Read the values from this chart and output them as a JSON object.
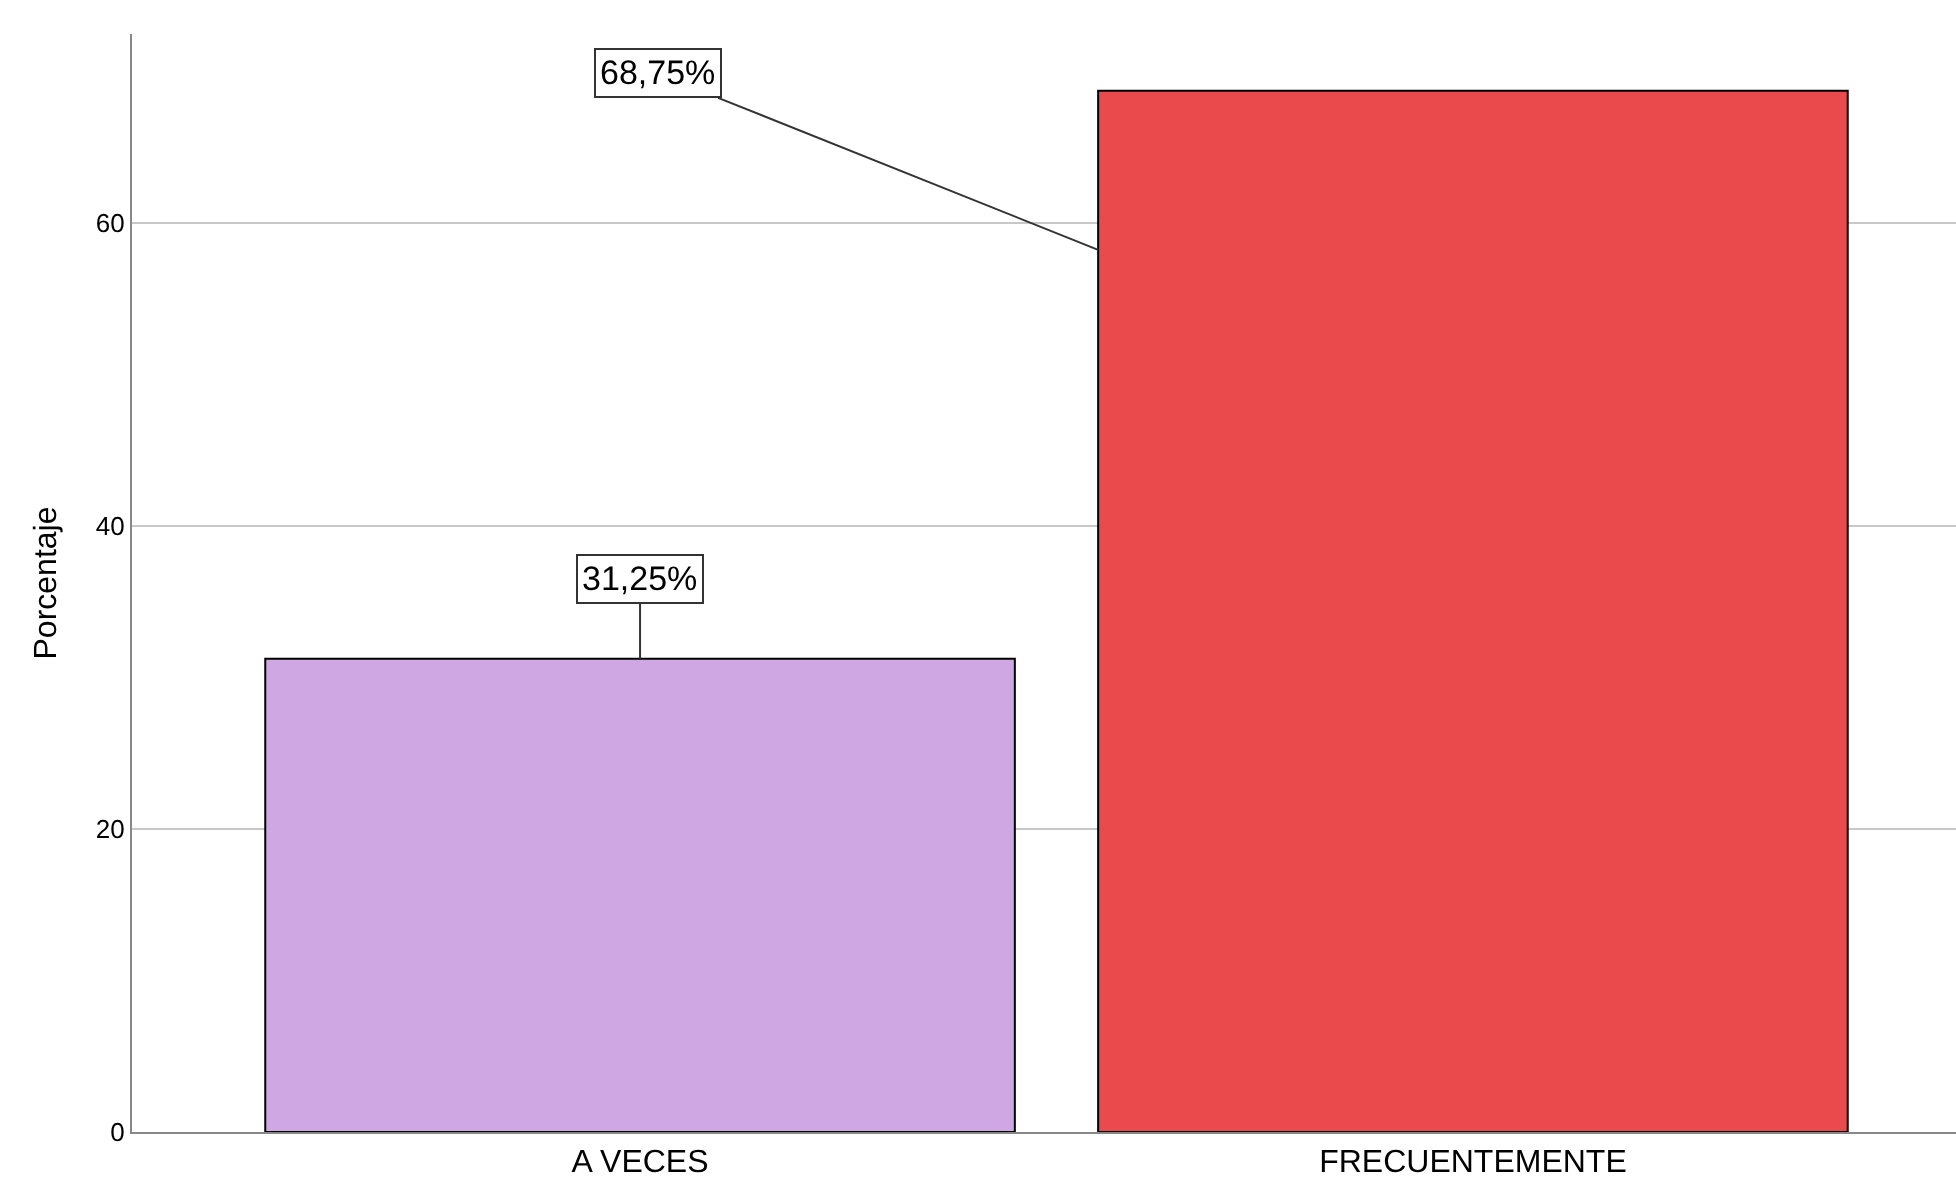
{
  "chart_data": {
    "type": "bar",
    "ylabel": "Porcentaje",
    "categories": [
      "A VECES",
      "FRECUENTEMENTE"
    ],
    "values": [
      31.25,
      68.75
    ],
    "colors": [
      "#cfa8e3",
      "#eb4a4c"
    ],
    "value_labels": [
      "31,25%",
      "68,75%"
    ],
    "ylim": [
      0,
      72.5
    ],
    "yticks": [
      0,
      20,
      40,
      60
    ],
    "grid": "y",
    "legend": false
  }
}
